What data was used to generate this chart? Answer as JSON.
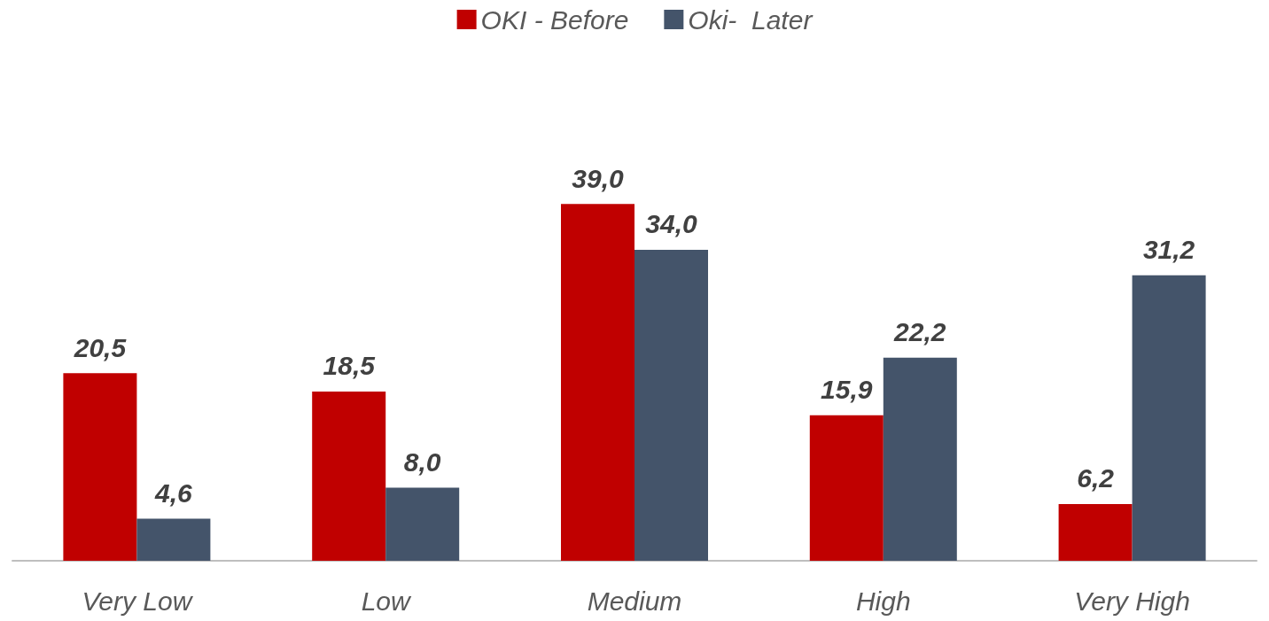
{
  "chart_data": {
    "type": "bar",
    "categories": [
      "Very Low",
      "Low",
      "Medium",
      "High",
      "Very High"
    ],
    "series": [
      {
        "name": "OKI - Before",
        "color": "#c00000",
        "values": [
          20.5,
          18.5,
          39.0,
          15.9,
          6.2
        ],
        "value_labels": [
          "20,5",
          "18,5",
          "39,0",
          "15,9",
          "6,2"
        ]
      },
      {
        "name": "Oki-  Later",
        "color": "#44546a",
        "values": [
          4.6,
          8.0,
          34.0,
          22.2,
          31.2
        ],
        "value_labels": [
          "4,6",
          "8,0",
          "34,0",
          "22,2",
          "31,2"
        ]
      }
    ],
    "legend": "top"
  }
}
